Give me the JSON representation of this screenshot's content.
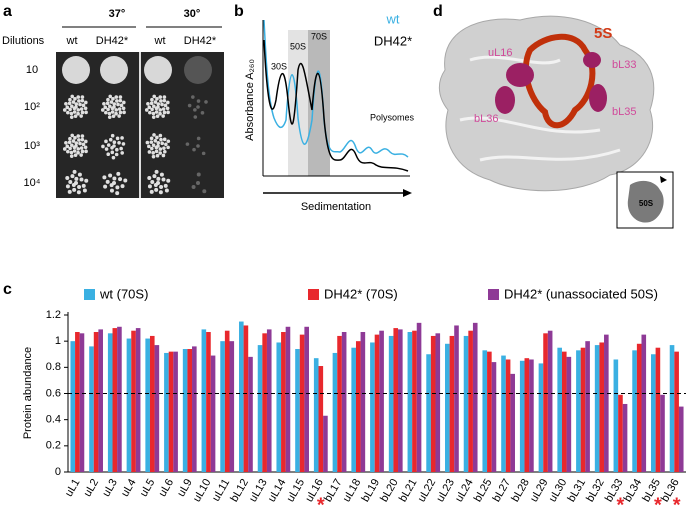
{
  "panel_a": {
    "label": "a",
    "temperatures": [
      "37°",
      "30°"
    ],
    "dilutions_label": "Dilutions",
    "strains": [
      "wt",
      "DH42*",
      "wt",
      "DH42*"
    ],
    "dilutions": [
      "10",
      "10²",
      "10³",
      "10⁴"
    ]
  },
  "panel_b": {
    "label": "b",
    "legend": [
      "wt",
      "DH42*"
    ],
    "peaks": [
      "30S",
      "50S",
      "70S"
    ],
    "polysomes": "Polysomes",
    "y_label": "Absorbance A₂₆₀",
    "x_label": "Sedimentation"
  },
  "panel_d": {
    "label": "d",
    "rRNA": "5S",
    "proteins": [
      "uL16",
      "bL33",
      "bL36",
      "bL35"
    ],
    "inset": "50S"
  },
  "chart_data": {
    "type": "bar",
    "panel_label": "c",
    "y_label": "Protein abundance",
    "categories": [
      "uL1",
      "uL2",
      "uL3",
      "uL4",
      "uL5",
      "uL6",
      "uL9",
      "uL10",
      "uL11",
      "bL12",
      "uL13",
      "uL14",
      "uL15",
      "uL16",
      "bL17",
      "uL18",
      "bL19",
      "bL20",
      "bL21",
      "uL22",
      "uL23",
      "uL24",
      "bL25",
      "bL27",
      "bL28",
      "uL29",
      "uL30",
      "bL31",
      "bL32",
      "bL33",
      "bL34",
      "bL35",
      "bL36"
    ],
    "series": [
      {
        "name": "wt (70S)",
        "color": "#3ab0e2",
        "values": [
          1.0,
          0.96,
          1.06,
          1.02,
          1.02,
          0.91,
          0.94,
          1.09,
          1.0,
          1.15,
          0.97,
          0.99,
          0.94,
          0.87,
          0.91,
          0.95,
          0.99,
          1.04,
          1.07,
          0.9,
          0.98,
          1.04,
          0.93,
          0.89,
          0.85,
          0.83,
          0.95,
          0.93,
          0.97,
          0.86,
          0.93,
          0.9,
          0.97
        ]
      },
      {
        "name": "DH42* (70S)",
        "color": "#e8282d",
        "values": [
          1.07,
          1.07,
          1.1,
          1.08,
          1.04,
          0.92,
          0.94,
          1.07,
          1.08,
          1.12,
          1.06,
          1.07,
          1.05,
          0.81,
          1.04,
          1.0,
          1.05,
          1.1,
          1.08,
          1.04,
          1.04,
          1.08,
          0.92,
          0.86,
          0.87,
          1.06,
          0.92,
          0.95,
          0.99,
          0.59,
          0.98,
          0.95,
          0.92
        ]
      },
      {
        "name": "DH42* (unassociated 50S)",
        "color": "#8e3a96",
        "values": [
          1.06,
          1.09,
          1.11,
          1.1,
          0.97,
          0.92,
          0.96,
          0.89,
          1.0,
          0.88,
          1.09,
          1.11,
          1.11,
          0.43,
          1.07,
          1.07,
          1.08,
          1.09,
          1.14,
          1.06,
          1.12,
          1.14,
          0.84,
          0.75,
          0.86,
          1.08,
          0.88,
          1.0,
          1.05,
          0.52,
          1.05,
          0.59,
          0.5
        ]
      }
    ],
    "ylim": [
      0,
      1.2
    ],
    "yticks": [
      0,
      0.2,
      0.4,
      0.6,
      0.8,
      1,
      1.2
    ],
    "reference_line": 0.6,
    "significance": [
      null,
      null,
      null,
      null,
      null,
      null,
      null,
      null,
      null,
      null,
      null,
      null,
      null,
      "*",
      null,
      null,
      null,
      null,
      null,
      null,
      null,
      null,
      null,
      null,
      null,
      null,
      null,
      null,
      null,
      "*",
      null,
      "*",
      "*"
    ]
  }
}
